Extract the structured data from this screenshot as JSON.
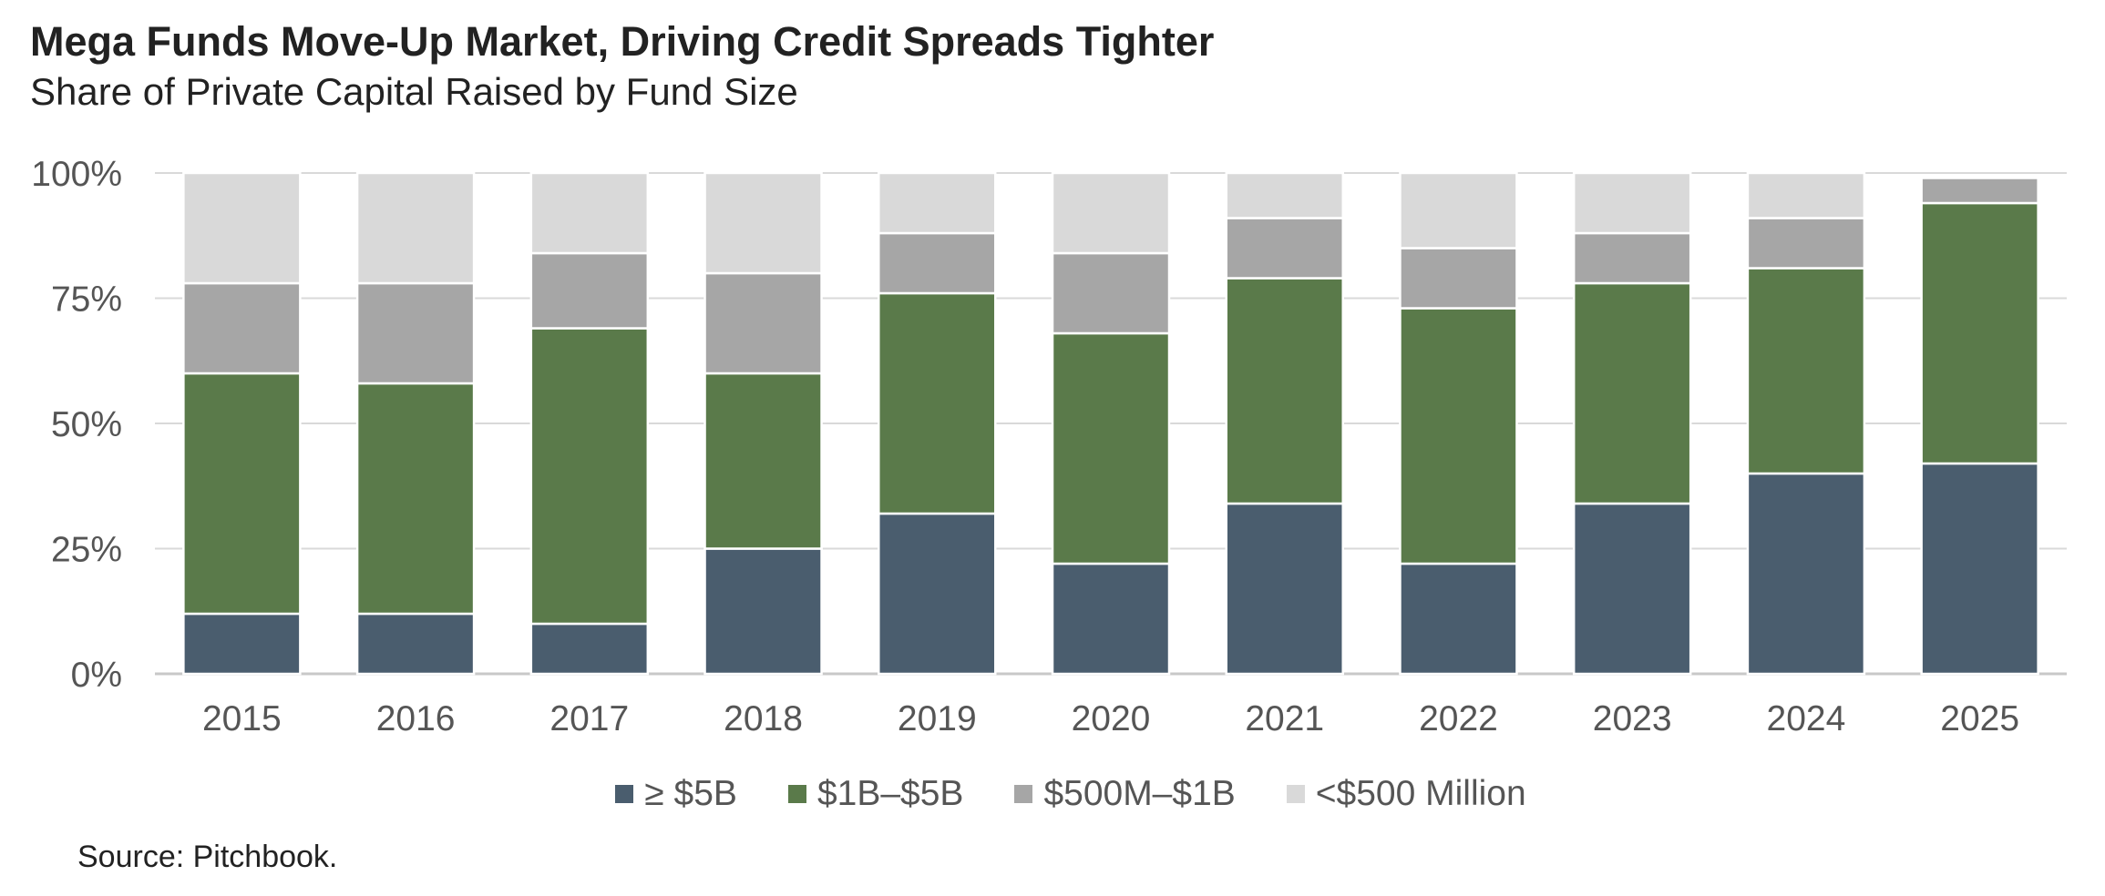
{
  "header": {
    "title": "Mega Funds Move-Up Market, Driving Credit Spreads Tighter",
    "subtitle": "Share of Private Capital Raised by Fund Size"
  },
  "footer": {
    "source": "Source: Pitchbook."
  },
  "chart_data": {
    "type": "bar",
    "stacked": true,
    "title": "Mega Funds Move-Up Market, Driving Credit Spreads Tighter",
    "subtitle": "Share of Private Capital Raised by Fund Size",
    "xlabel": "",
    "ylabel": "",
    "ylim": [
      0,
      100
    ],
    "yticks": [
      "0%",
      "25%",
      "50%",
      "75%",
      "100%"
    ],
    "grid": true,
    "legend_position": "bottom",
    "categories": [
      "2015",
      "2016",
      "2017",
      "2018",
      "2019",
      "2020",
      "2021",
      "2022",
      "2023",
      "2024",
      "2025"
    ],
    "series": [
      {
        "name": "≥ $5B",
        "color": "#4a5d6e",
        "values": [
          12,
          12,
          10,
          25,
          32,
          22,
          34,
          22,
          34,
          40,
          42
        ]
      },
      {
        "name": "$1B–$5B",
        "color": "#5a7a4a",
        "values": [
          48,
          46,
          59,
          35,
          44,
          46,
          45,
          51,
          44,
          41,
          52
        ]
      },
      {
        "name": "$500M–$1B",
        "color": "#a6a6a6",
        "values": [
          18,
          20,
          15,
          20,
          12,
          16,
          12,
          12,
          10,
          10,
          5
        ]
      },
      {
        "name": "<$500 Million",
        "color": "#d9d9d9",
        "values": [
          22,
          22,
          16,
          20,
          12,
          16,
          9,
          15,
          12,
          9,
          0
        ]
      }
    ]
  }
}
